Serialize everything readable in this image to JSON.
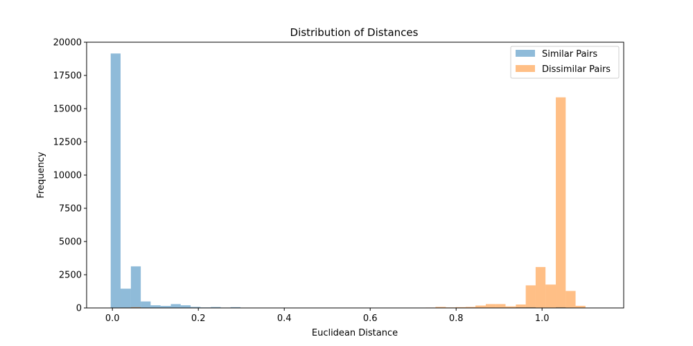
{
  "chart_data": {
    "type": "histogram",
    "title": "Distribution of Distances",
    "xlabel": "Euclidean Distance",
    "ylabel": "Frequency",
    "xlim": [
      -0.06,
      1.19
    ],
    "ylim": [
      0,
      20000
    ],
    "xticks": [
      0.0,
      0.2,
      0.4,
      0.6,
      0.8,
      1.0
    ],
    "xtick_labels": [
      "0.0",
      "0.2",
      "0.4",
      "0.6",
      "0.8",
      "1.0"
    ],
    "yticks": [
      0,
      2500,
      5000,
      7500,
      10000,
      12500,
      15000,
      17500,
      20000
    ],
    "ytick_labels": [
      "0",
      "2500",
      "5000",
      "7500",
      "10000",
      "12500",
      "15000",
      "17500",
      "20000"
    ],
    "legend_position": "top-right",
    "grid": false,
    "series": [
      {
        "name": "Similar Pairs",
        "color": "#1f77b4",
        "alpha": 0.5,
        "bins": [
          {
            "x0": -0.004,
            "x1": 0.019,
            "value": 19150
          },
          {
            "x0": 0.019,
            "x1": 0.043,
            "value": 1450
          },
          {
            "x0": 0.043,
            "x1": 0.066,
            "value": 3130
          },
          {
            "x0": 0.066,
            "x1": 0.089,
            "value": 490
          },
          {
            "x0": 0.089,
            "x1": 0.112,
            "value": 200
          },
          {
            "x0": 0.112,
            "x1": 0.136,
            "value": 150
          },
          {
            "x0": 0.136,
            "x1": 0.159,
            "value": 290
          },
          {
            "x0": 0.159,
            "x1": 0.182,
            "value": 200
          },
          {
            "x0": 0.182,
            "x1": 0.205,
            "value": 80
          },
          {
            "x0": 0.205,
            "x1": 0.229,
            "value": 40
          },
          {
            "x0": 0.229,
            "x1": 0.252,
            "value": 70
          },
          {
            "x0": 0.252,
            "x1": 0.275,
            "value": 30
          },
          {
            "x0": 0.275,
            "x1": 0.298,
            "value": 60
          },
          {
            "x0": 0.298,
            "x1": 0.322,
            "value": 20
          },
          {
            "x0": 0.939,
            "x1": 0.962,
            "value": 50
          },
          {
            "x0": 0.962,
            "x1": 0.985,
            "value": 60
          },
          {
            "x0": 1.008,
            "x1": 1.032,
            "value": 20
          },
          {
            "x0": 1.032,
            "x1": 1.055,
            "value": 60
          }
        ]
      },
      {
        "name": "Dissimilar Pairs",
        "color": "#ff7f0e",
        "alpha": 0.5,
        "bins": [
          {
            "x0": 0.019,
            "x1": 0.043,
            "value": 30
          },
          {
            "x0": 0.043,
            "x1": 0.066,
            "value": 60
          },
          {
            "x0": 0.066,
            "x1": 0.089,
            "value": 20
          },
          {
            "x0": 0.729,
            "x1": 0.752,
            "value": 30
          },
          {
            "x0": 0.752,
            "x1": 0.776,
            "value": 80
          },
          {
            "x0": 0.776,
            "x1": 0.799,
            "value": 40
          },
          {
            "x0": 0.799,
            "x1": 0.822,
            "value": 60
          },
          {
            "x0": 0.822,
            "x1": 0.845,
            "value": 80
          },
          {
            "x0": 0.845,
            "x1": 0.869,
            "value": 180
          },
          {
            "x0": 0.869,
            "x1": 0.892,
            "value": 290
          },
          {
            "x0": 0.892,
            "x1": 0.915,
            "value": 290
          },
          {
            "x0": 0.915,
            "x1": 0.939,
            "value": 120
          },
          {
            "x0": 0.939,
            "x1": 0.962,
            "value": 260
          },
          {
            "x0": 0.962,
            "x1": 0.985,
            "value": 1700
          },
          {
            "x0": 0.985,
            "x1": 1.008,
            "value": 3080
          },
          {
            "x0": 1.008,
            "x1": 1.032,
            "value": 1760
          },
          {
            "x0": 1.032,
            "x1": 1.055,
            "value": 15850
          },
          {
            "x0": 1.055,
            "x1": 1.078,
            "value": 1280
          },
          {
            "x0": 1.078,
            "x1": 1.101,
            "value": 160
          }
        ]
      }
    ]
  }
}
